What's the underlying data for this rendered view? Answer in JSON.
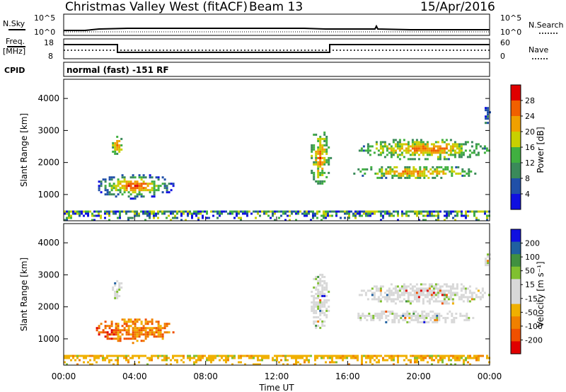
{
  "header": {
    "title": "Christmas Valley West (fitACF)",
    "beam": "Beam 13",
    "date": "15/Apr/2016"
  },
  "status_panels": {
    "sky_label": "N.Sky",
    "search_label": "N.Search",
    "freq_label": "Freq.",
    "freq_unit": "[MHz]",
    "nave_label": "Nave",
    "cpid_label": "CPID",
    "cpid_text": "normal (fast) -151 RF",
    "sky_ticks": [
      "10^5",
      "10^0"
    ],
    "search_ticks": [
      "10^5",
      "10^0"
    ],
    "freq_ticks": [
      "18",
      "8"
    ],
    "nave_ticks": [
      "60",
      "0"
    ]
  },
  "colors": {
    "power_scale": [
      "#1010e0",
      "#2050a8",
      "#3a8a5a",
      "#40b040",
      "#c8d000",
      "#f0a000",
      "#f06000",
      "#e00000"
    ],
    "velocity_scale": [
      "#e00000",
      "#f05000",
      "#f08000",
      "#f0b000",
      "#d8d8d8",
      "#d8d8d8",
      "#80c030",
      "#409040",
      "#2060a0",
      "#1010e0"
    ]
  },
  "chart_data": [
    {
      "type": "heatmap",
      "name": "Power",
      "ylabel": "Slant Range [km]",
      "yticks": [
        "1000",
        "2000",
        "3000",
        "4000"
      ],
      "ylim": [
        180,
        4600
      ],
      "xlim_hours": [
        0,
        24
      ],
      "colorbar_label": "Power [dB]",
      "colorbar_ticks": [
        "28",
        "24",
        "20",
        "16",
        "12",
        "8",
        "4"
      ],
      "color_range": [
        0,
        32
      ],
      "patches": [
        {
          "t": [
            1.7,
            6.2
          ],
          "r": [
            900,
            1700
          ],
          "level": "high"
        },
        {
          "t": [
            2.6,
            3.3
          ],
          "r": [
            2250,
            2900
          ],
          "level": "mid"
        },
        {
          "t": [
            13.8,
            15.0
          ],
          "r": [
            1300,
            3100
          ],
          "level": "mid"
        },
        {
          "t": [
            16.2,
            23.2
          ],
          "r": [
            1500,
            1950
          ],
          "level": "mid"
        },
        {
          "t": [
            16.5,
            24.0
          ],
          "r": [
            2100,
            2800
          ],
          "level": "mid"
        },
        {
          "t": [
            23.6,
            24.0
          ],
          "r": [
            3200,
            3800
          ],
          "level": "low"
        },
        {
          "t": [
            0,
            24.0
          ],
          "r": [
            200,
            500
          ],
          "level": "noise"
        }
      ]
    },
    {
      "type": "heatmap",
      "name": "Velocity",
      "ylabel": "Slant Range [km]",
      "yticks": [
        "1000",
        "2000",
        "3000",
        "4000"
      ],
      "ylim": [
        180,
        4600
      ],
      "xlim_hours": [
        0,
        24
      ],
      "xlabel": "Time UT",
      "xticks": [
        "00:00",
        "04:00",
        "08:00",
        "12:00",
        "16:00",
        "20:00",
        "00:00"
      ],
      "colorbar_label": "Velocity [m s⁻¹]",
      "colorbar_ticks": [
        "200",
        "100",
        "50",
        "15",
        "-15",
        "-50",
        "-100",
        "-200"
      ],
      "color_range": [
        -250,
        250
      ],
      "patches": [
        {
          "t": [
            1.7,
            6.2
          ],
          "r": [
            900,
            1700
          ],
          "level": "negative"
        },
        {
          "t": [
            2.6,
            3.3
          ],
          "r": [
            2250,
            2900
          ],
          "level": "near-zero"
        },
        {
          "t": [
            13.8,
            15.0
          ],
          "r": [
            1300,
            3100
          ],
          "level": "near-zero"
        },
        {
          "t": [
            16.2,
            23.2
          ],
          "r": [
            1500,
            1950
          ],
          "level": "near-zero"
        },
        {
          "t": [
            16.5,
            24.0
          ],
          "r": [
            2100,
            2800
          ],
          "level": "near-zero"
        },
        {
          "t": [
            23.6,
            24.0
          ],
          "r": [
            3200,
            3800
          ],
          "level": "near-zero"
        },
        {
          "t": [
            0,
            24.0
          ],
          "r": [
            200,
            500
          ],
          "level": "ground-scatter"
        }
      ]
    }
  ]
}
